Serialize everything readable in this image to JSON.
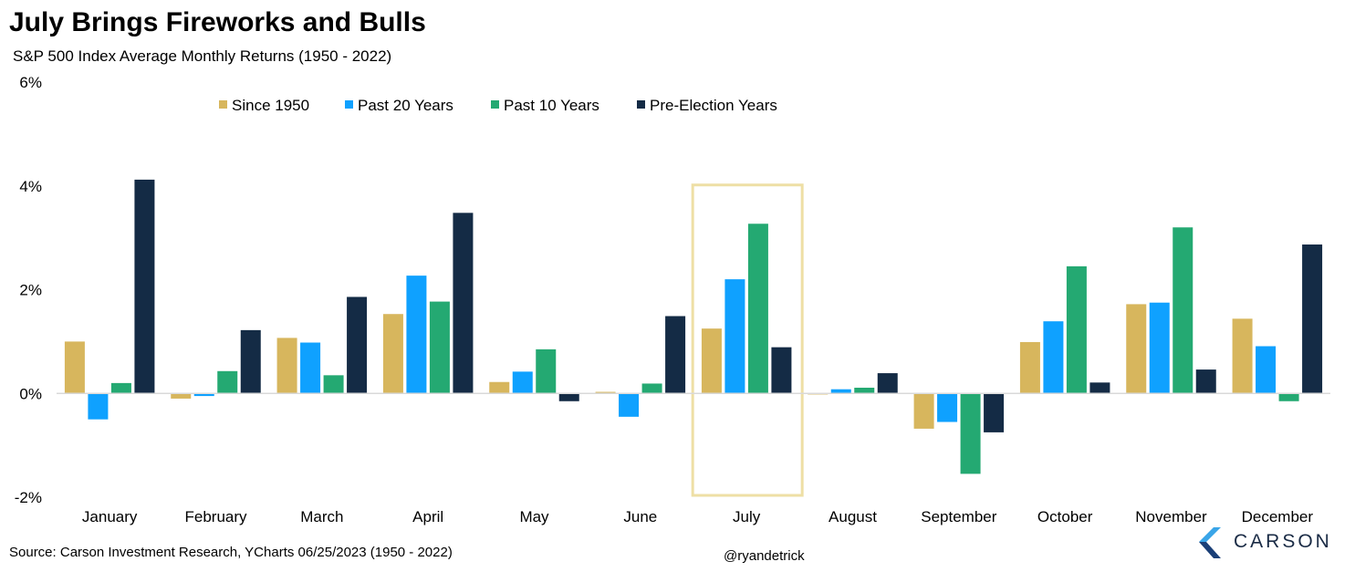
{
  "title": "July Brings Fireworks and Bulls",
  "subtitle": "S&P 500 Index Average Monthly Returns (1950 - 2022)",
  "source": "Source: Carson Investment Research, YCharts 06/25/2023 (1950 - 2022)",
  "handle": "@ryandetrick",
  "logo_text": "CARSON",
  "colors": {
    "since_1950": "#d7b65d",
    "past_20": "#0fa1ff",
    "past_10": "#24a972",
    "pre_election": "#142b45",
    "highlight": "#eedfa5",
    "logo_light": "#3aa5e8",
    "logo_dark": "#1a3f77"
  },
  "chart_data": {
    "type": "bar",
    "categories": [
      "January",
      "February",
      "March",
      "April",
      "May",
      "June",
      "July",
      "August",
      "September",
      "October",
      "November",
      "December"
    ],
    "series": [
      {
        "name": "Since 1950",
        "values": [
          1.0,
          -0.1,
          1.07,
          1.53,
          0.22,
          0.03,
          1.25,
          -0.02,
          -0.68,
          0.99,
          1.72,
          1.44
        ]
      },
      {
        "name": "Past 20 Years",
        "values": [
          -0.5,
          -0.05,
          0.98,
          2.27,
          0.42,
          -0.45,
          2.2,
          0.08,
          -0.55,
          1.39,
          1.75,
          0.91
        ]
      },
      {
        "name": "Past 10 Years",
        "values": [
          0.2,
          0.43,
          0.35,
          1.77,
          0.85,
          0.19,
          3.27,
          0.11,
          -1.55,
          2.45,
          3.2,
          -0.15
        ]
      },
      {
        "name": "Pre-Election Years",
        "values": [
          4.12,
          1.22,
          1.86,
          3.48,
          -0.15,
          1.49,
          0.89,
          0.39,
          -0.75,
          0.21,
          0.46,
          2.87
        ]
      }
    ],
    "ylim": [
      -2,
      6
    ],
    "yticks": [
      "-2%",
      "0%",
      "2%",
      "4%",
      "6%"
    ],
    "ytick_values": [
      -2,
      0,
      2,
      4,
      6
    ],
    "highlight_category": "July",
    "legend_position": "top",
    "grid": false
  }
}
